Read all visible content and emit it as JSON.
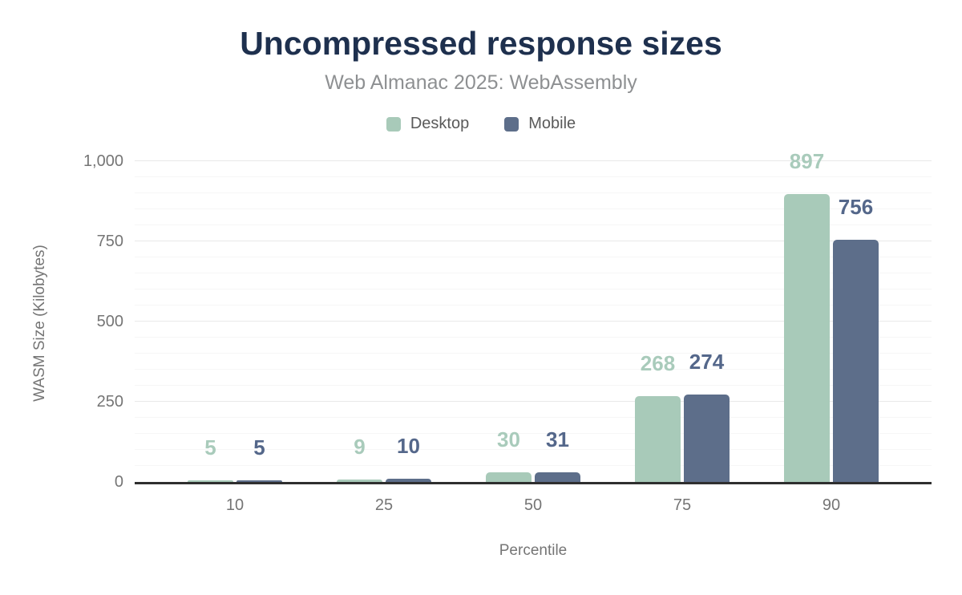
{
  "chart_data": {
    "type": "bar",
    "title": "Uncompressed response sizes",
    "subtitle": "Web Almanac 2025: WebAssembly",
    "xlabel": "Percentile",
    "ylabel": "WASM Size (Kilobytes)",
    "categories": [
      "10",
      "25",
      "50",
      "75",
      "90"
    ],
    "series": [
      {
        "name": "Desktop",
        "color": "#a8cab9",
        "label_color": "#a9cbbb",
        "values": [
          5,
          9,
          30,
          268,
          897
        ]
      },
      {
        "name": "Mobile",
        "color": "#5d6e8a",
        "label_color": "#54678a",
        "values": [
          5,
          10,
          31,
          274,
          756
        ]
      }
    ],
    "ylim": [
      0,
      1000
    ],
    "y_ticks": [
      0,
      250,
      500,
      750,
      1000
    ],
    "y_tick_labels": [
      "0",
      "250",
      "500",
      "750",
      "1,000"
    ],
    "grid": {
      "minor_step": 50,
      "major_step": 250,
      "on": true
    },
    "legend_position": "top"
  },
  "layout_colors": {
    "title": "#1e304e",
    "subtitle": "#8e9092",
    "axis_text": "#757575",
    "axis_line": "#2f2f2f",
    "gridline_major": "#e9e9e9",
    "gridline_minor": "#f6f6f6",
    "background": "#ffffff"
  }
}
